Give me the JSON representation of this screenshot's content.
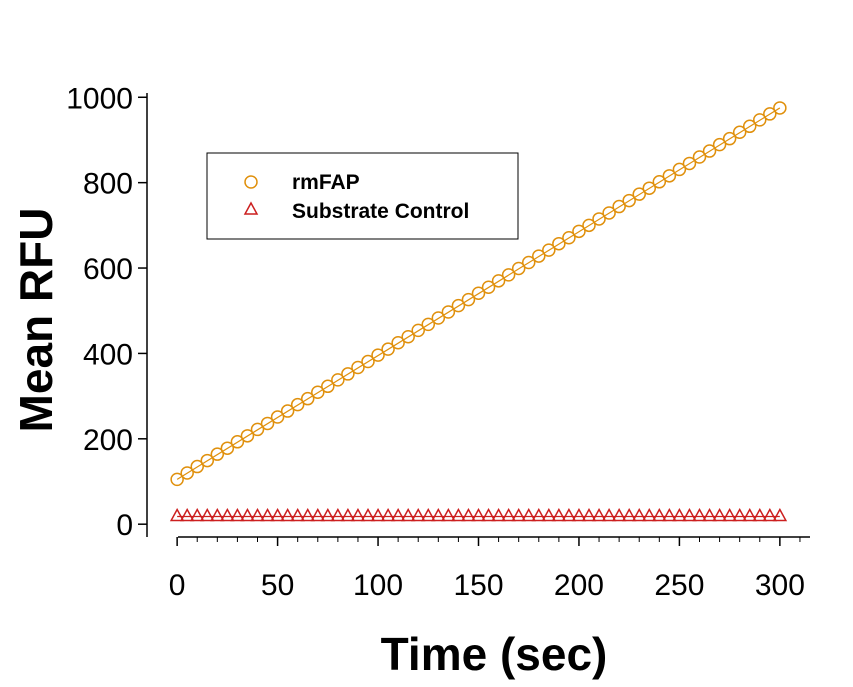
{
  "chart_data": {
    "type": "scatter",
    "title": "",
    "xlabel": "Time (sec)",
    "ylabel": "Mean RFU",
    "xlim": [
      -15,
      315
    ],
    "ylim": [
      -30,
      1010
    ],
    "xticks": [
      0,
      50,
      100,
      150,
      200,
      250,
      300
    ],
    "xtick_labels": [
      "0",
      "50",
      "100",
      "150",
      "200",
      "250",
      "300"
    ],
    "yticks": [
      0,
      200,
      400,
      600,
      800,
      1000
    ],
    "ytick_labels": [
      "0",
      "200",
      "400",
      "600",
      "800",
      "1000"
    ],
    "x_minor_step": 10,
    "grid": false,
    "legend_position": "top-left",
    "series": [
      {
        "name": "rmFAP",
        "marker": "circle",
        "color": "#E0900C",
        "x": [
          0,
          5,
          10,
          15,
          20,
          25,
          30,
          35,
          40,
          45,
          50,
          55,
          60,
          65,
          70,
          75,
          80,
          85,
          90,
          95,
          100,
          105,
          110,
          115,
          120,
          125,
          130,
          135,
          140,
          145,
          150,
          155,
          160,
          165,
          170,
          175,
          180,
          185,
          190,
          195,
          200,
          205,
          210,
          215,
          220,
          225,
          230,
          235,
          240,
          245,
          250,
          255,
          260,
          265,
          270,
          275,
          280,
          285,
          290,
          295,
          300
        ],
        "y": [
          105,
          120,
          135,
          149,
          164,
          178,
          193,
          207,
          222,
          236,
          251,
          265,
          280,
          294,
          309,
          323,
          338,
          352,
          367,
          381,
          396,
          410,
          425,
          439,
          454,
          468,
          483,
          497,
          512,
          526,
          541,
          555,
          570,
          584,
          599,
          613,
          628,
          642,
          657,
          671,
          686,
          700,
          715,
          729,
          744,
          758,
          773,
          787,
          802,
          816,
          831,
          845,
          860,
          874,
          889,
          903,
          918,
          932,
          947,
          961,
          975
        ]
      },
      {
        "name": "Substrate Control",
        "marker": "triangle",
        "color": "#CC1F1F",
        "x": [
          0,
          5,
          10,
          15,
          20,
          25,
          30,
          35,
          40,
          45,
          50,
          55,
          60,
          65,
          70,
          75,
          80,
          85,
          90,
          95,
          100,
          105,
          110,
          115,
          120,
          125,
          130,
          135,
          140,
          145,
          150,
          155,
          160,
          165,
          170,
          175,
          180,
          185,
          190,
          195,
          200,
          205,
          210,
          215,
          220,
          225,
          230,
          235,
          240,
          245,
          250,
          255,
          260,
          265,
          270,
          275,
          280,
          285,
          290,
          295,
          300
        ],
        "y": [
          18,
          18,
          18,
          18,
          18,
          18,
          18,
          18,
          18,
          18,
          18,
          18,
          18,
          18,
          18,
          18,
          18,
          18,
          18,
          18,
          18,
          18,
          18,
          18,
          18,
          18,
          18,
          18,
          18,
          18,
          18,
          18,
          18,
          18,
          18,
          18,
          18,
          18,
          18,
          18,
          18,
          18,
          18,
          18,
          18,
          18,
          18,
          18,
          18,
          18,
          18,
          18,
          18,
          18,
          18,
          18,
          18,
          18,
          18,
          18,
          18
        ]
      }
    ]
  }
}
